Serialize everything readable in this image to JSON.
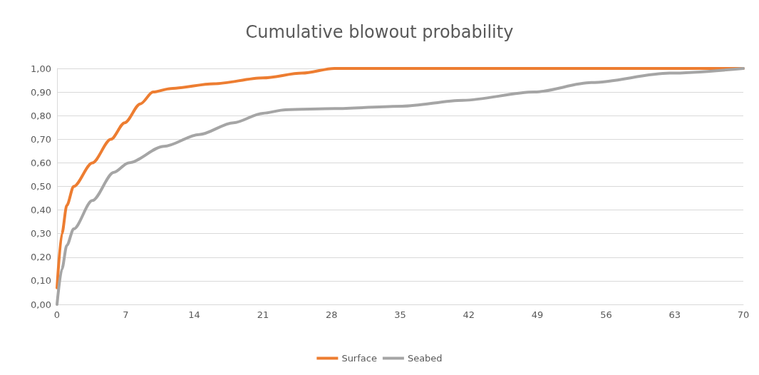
{
  "chart_data": {
    "type": "line",
    "title": "Cumulative blowout probability",
    "xlim": [
      0,
      70
    ],
    "xticks": [
      0,
      7,
      14,
      21,
      28,
      35,
      42,
      49,
      56,
      63,
      70
    ],
    "ylim": [
      0,
      1
    ],
    "yticks": [
      {
        "value": 0,
        "label": "0,00"
      },
      {
        "value": 0.1,
        "label": "0,10"
      },
      {
        "value": 0.2,
        "label": "0,20"
      },
      {
        "value": 0.3,
        "label": "0,30"
      },
      {
        "value": 0.4,
        "label": "0,40"
      },
      {
        "value": 0.5,
        "label": "0,50"
      },
      {
        "value": 0.6,
        "label": "0,60"
      },
      {
        "value": 0.7,
        "label": "0,70"
      },
      {
        "value": 0.8,
        "label": "0,80"
      },
      {
        "value": 0.9,
        "label": "0,90"
      },
      {
        "value": 1,
        "label": "1,00"
      }
    ],
    "grid": "y",
    "legend": "bottom",
    "marker": "none",
    "line_style": "solid",
    "series": [
      {
        "name": "Surface",
        "color": "#ed7d31",
        "x": [
          0,
          0.5,
          1,
          1.7,
          3.6,
          5.5,
          6.9,
          8.5,
          9.8,
          11.6,
          16,
          21,
          25,
          28.3,
          35,
          42,
          49,
          56,
          63,
          70
        ],
        "values": [
          0.07,
          0.3,
          0.42,
          0.5,
          0.6,
          0.7,
          0.77,
          0.85,
          0.9,
          0.915,
          0.935,
          0.96,
          0.98,
          1.0,
          1.0,
          1.0,
          1.0,
          1.0,
          1.0,
          1.0
        ]
      },
      {
        "name": "Seabed",
        "color": "#a5a5a5",
        "x": [
          0,
          0.5,
          1,
          1.7,
          3.6,
          5.8,
          7.3,
          10.9,
          14.5,
          18,
          21,
          23.3,
          28.3,
          35.2,
          41.4,
          48.7,
          54.5,
          62.5,
          70
        ],
        "values": [
          0.0,
          0.15,
          0.25,
          0.32,
          0.44,
          0.56,
          0.6,
          0.67,
          0.72,
          0.77,
          0.81,
          0.825,
          0.83,
          0.84,
          0.865,
          0.9,
          0.94,
          0.98,
          1.0
        ]
      }
    ]
  }
}
